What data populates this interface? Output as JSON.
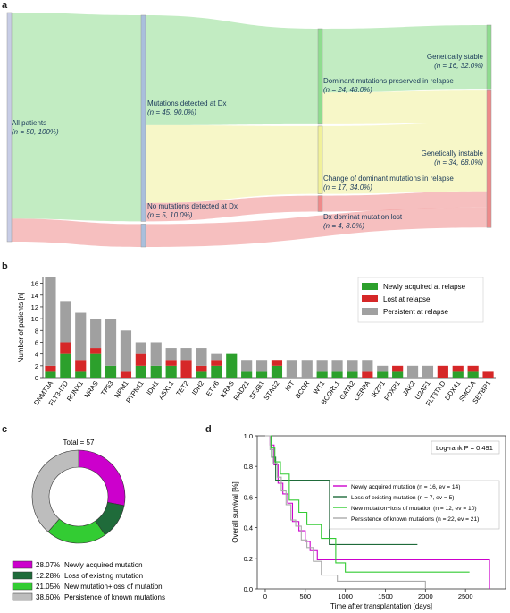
{
  "panels": {
    "a": "a",
    "b": "b",
    "c": "c",
    "d": "d"
  },
  "chart_data": [
    {
      "type": "sankey",
      "nodes": [
        {
          "id": "all",
          "label": "All patients",
          "sublabel": "(n = 50, 100%)",
          "value": 50
        },
        {
          "id": "mut",
          "label": "Mutations detected at Dx",
          "sublabel": "(n = 45, 90.0%)",
          "value": 45
        },
        {
          "id": "nomut",
          "label": "No mutations detected at Dx",
          "sublabel": "(n = 5, 10.0%)",
          "value": 5
        },
        {
          "id": "pres",
          "label": "Dominant mutations preserved in relapse",
          "sublabel": "(n = 24, 48.0%)",
          "value": 24
        },
        {
          "id": "change",
          "label": "Change of dominant mutations in relapse",
          "sublabel": "(n = 17, 34.0%)",
          "value": 17
        },
        {
          "id": "lost",
          "label": "Dx dominat mutation lost",
          "sublabel": "(n = 4, 8.0%)",
          "value": 4
        },
        {
          "id": "stable",
          "label": "Genetically stable",
          "sublabel": "(n = 16, 32.0%)",
          "value": 16
        },
        {
          "id": "instable",
          "label": "Genetically instable",
          "sublabel": "(n = 34, 68.0%)",
          "value": 34
        }
      ],
      "links": [
        {
          "source": "all",
          "target": "mut",
          "value": 45
        },
        {
          "source": "all",
          "target": "nomut",
          "value": 5
        },
        {
          "source": "mut",
          "target": "pres",
          "value": 24
        },
        {
          "source": "mut",
          "target": "change",
          "value": 17
        },
        {
          "source": "mut",
          "target": "lost",
          "value": 4
        },
        {
          "source": "pres",
          "target": "stable",
          "value": 16
        },
        {
          "source": "pres",
          "target": "instable",
          "value": 8
        },
        {
          "source": "change",
          "target": "instable",
          "value": 17
        },
        {
          "source": "lost",
          "target": "instable",
          "value": 4
        },
        {
          "source": "nomut",
          "target": "instable",
          "value": 5
        }
      ],
      "colors": {
        "green": "#8fdc8f",
        "yellow": "#f1f19a",
        "red": "#ee8a8a",
        "grey": "#c8cde6",
        "blue": "#a9bfdc"
      }
    },
    {
      "type": "bar",
      "stacked": true,
      "ylabel": "Number of patients [n]",
      "ylim": [
        0,
        17
      ],
      "yticks": [
        0,
        2,
        4,
        6,
        8,
        10,
        12,
        14,
        16
      ],
      "categories": [
        "DNMT3A",
        "FLT3-ITD",
        "RUNX1",
        "NRAS",
        "TP53",
        "NPM1",
        "PTPN11",
        "IDH1",
        "ASXL1",
        "TET2",
        "IDH2",
        "ETV6",
        "KRAS",
        "RAD21",
        "SF3B1",
        "STAG2",
        "KIT",
        "BCOR",
        "WT1",
        "BCORL1",
        "GATA2",
        "CEBPA",
        "IKZF1",
        "FOXP1",
        "JAK2",
        "U2AF1",
        "FLT3TKD",
        "DDX41",
        "SMC1A",
        "SETBP1"
      ],
      "series": [
        {
          "name": "Newly acquired at relapse",
          "color": "#2ca02c",
          "values": [
            1,
            4,
            1,
            4,
            2,
            0,
            2,
            2,
            2,
            0,
            1,
            2,
            4,
            1,
            1,
            2,
            0,
            0,
            1,
            1,
            1,
            0,
            1,
            1,
            0,
            0,
            0,
            1,
            1,
            0
          ]
        },
        {
          "name": "Lost at relapse",
          "color": "#d62728",
          "values": [
            1,
            2,
            2,
            1,
            0,
            1,
            2,
            0,
            1,
            3,
            1,
            1,
            0,
            0,
            0,
            1,
            0,
            0,
            0,
            0,
            0,
            1,
            0,
            1,
            0,
            0,
            2,
            1,
            1,
            1
          ]
        },
        {
          "name": "Persistent at relapse",
          "color": "#a0a0a0",
          "values": [
            15,
            7,
            8,
            5,
            8,
            7,
            2,
            4,
            2,
            2,
            3,
            1,
            0,
            2,
            2,
            0,
            3,
            3,
            2,
            2,
            2,
            2,
            1,
            0,
            2,
            2,
            0,
            0,
            0,
            0
          ]
        }
      ],
      "legend": "top-right"
    },
    {
      "type": "pie",
      "donut": true,
      "center_title": "Total = 57",
      "slices": [
        {
          "label": "Newly acquired mutation",
          "percent_label": "28.07%",
          "value": 28.07,
          "color": "#cc00cc"
        },
        {
          "label": "Loss of existing mutation",
          "percent_label": "12.28%",
          "value": 12.28,
          "color": "#1f6b3a"
        },
        {
          "label": "New mutation+loss of mutation",
          "percent_label": "21.05%",
          "value": 21.05,
          "color": "#33cc33"
        },
        {
          "label": "Persistence of known mutations",
          "percent_label": "38.60%",
          "value": 38.6,
          "color": "#bdbdbd"
        }
      ]
    },
    {
      "type": "line",
      "step": true,
      "xlabel": "Time after transplantation [days]",
      "ylabel": "Overall survival [%]",
      "xlim": [
        -100,
        3000
      ],
      "ylim": [
        0,
        1.0
      ],
      "xticks": [
        0,
        500,
        1000,
        1500,
        2000,
        2500
      ],
      "yticks": [
        0.0,
        0.2,
        0.4,
        0.6,
        0.8,
        1.0
      ],
      "ytick_labels": [
        "0.0",
        "0.2",
        "0.4",
        "0.6",
        "0.8",
        "1.0"
      ],
      "annotation": "Log-rank P = 0.491",
      "legend": "right",
      "series": [
        {
          "name": "Newly acquired mutation (n = 16, ev = 14)",
          "color": "#cc00cc",
          "x": [
            0,
            60,
            110,
            160,
            220,
            280,
            340,
            420,
            500,
            560,
            650,
            760,
            2800,
            2800
          ],
          "y": [
            1.0,
            0.94,
            0.81,
            0.69,
            0.62,
            0.56,
            0.44,
            0.38,
            0.31,
            0.25,
            0.19,
            0.19,
            0.19,
            0.0
          ]
        },
        {
          "name": "Loss of existing mutation (n = 7, ev = 5)",
          "color": "#1f6b3a",
          "x": [
            0,
            80,
            130,
            800,
            1900
          ],
          "y": [
            1.0,
            0.86,
            0.71,
            0.29,
            0.29
          ]
        },
        {
          "name": "New mutation+loss of mutation (n = 12, ev = 10)",
          "color": "#33cc33",
          "x": [
            0,
            70,
            120,
            190,
            300,
            420,
            520,
            700,
            880,
            1000,
            2550
          ],
          "y": [
            1.0,
            0.92,
            0.83,
            0.75,
            0.58,
            0.5,
            0.42,
            0.33,
            0.17,
            0.11,
            0.11
          ]
        },
        {
          "name": "Persistence of known mutations (n = 22, ev = 21)",
          "color": "#aaaaaa",
          "x": [
            0,
            60,
            100,
            150,
            200,
            260,
            320,
            380,
            450,
            520,
            600,
            700,
            900,
            1300,
            2000
          ],
          "y": [
            1.0,
            0.91,
            0.82,
            0.73,
            0.64,
            0.55,
            0.45,
            0.41,
            0.32,
            0.27,
            0.18,
            0.09,
            0.05,
            0.05,
            0.0
          ]
        }
      ]
    }
  ]
}
